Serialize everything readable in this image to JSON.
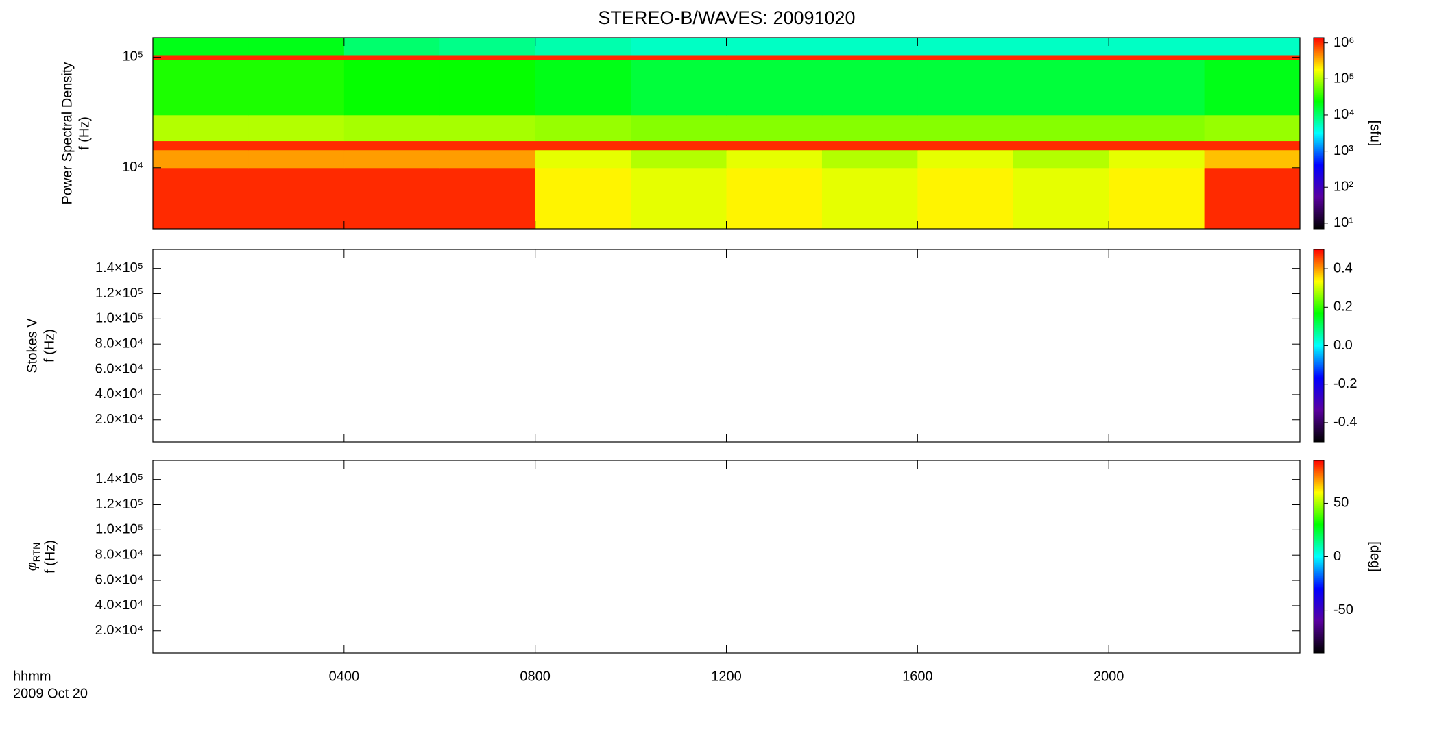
{
  "chart_data": [
    {
      "type": "heatmap",
      "title": "STEREO-B/WAVES: 20091020",
      "ylabel": [
        "Power Spectral Density",
        "f (Hz)"
      ],
      "xlim": [
        0,
        24
      ],
      "xticks": [
        4,
        8,
        12,
        16,
        20
      ],
      "ylim": [
        2800,
        150000
      ],
      "yscale": "log",
      "yticks": [
        {
          "value": 10000,
          "label": "10⁴"
        },
        {
          "value": 100000,
          "label": "10⁵"
        }
      ],
      "xbins": [
        0,
        2,
        4,
        6,
        8,
        10,
        12,
        14,
        16,
        18,
        20,
        22,
        24
      ],
      "ybins": [
        2800,
        10000,
        14500,
        17500,
        30000,
        95000,
        105000,
        150000
      ],
      "z": [
        [
          1000000,
          1000000,
          1000000,
          1000000,
          200000,
          150000,
          200000,
          150000,
          200000,
          150000,
          200000,
          1000000
        ],
        [
          400000,
          400000,
          400000,
          400000,
          150000,
          100000,
          150000,
          100000,
          150000,
          100000,
          150000,
          300000
        ],
        [
          1000000,
          1000000,
          1000000,
          1000000,
          1000000,
          1000000,
          1000000,
          1000000,
          1000000,
          1000000,
          1000000,
          1000000
        ],
        [
          100000,
          100000,
          90000,
          90000,
          80000,
          70000,
          70000,
          70000,
          70000,
          70000,
          70000,
          80000
        ],
        [
          30000,
          30000,
          25000,
          25000,
          20000,
          15000,
          15000,
          15000,
          15000,
          15000,
          15000,
          20000
        ],
        [
          1000000,
          1000000,
          1000000,
          1000000,
          1000000,
          1000000,
          1000000,
          1000000,
          1000000,
          1000000,
          1000000,
          1000000
        ],
        [
          20000,
          20000,
          10000,
          8000,
          6000,
          5000,
          5000,
          5000,
          5000,
          5000,
          5000,
          5000
        ]
      ],
      "zlim": [
        7,
        1400000
      ],
      "zscale": "log",
      "zlabel": "[sfu]",
      "zticks": [
        {
          "value": 10,
          "label": "10¹"
        },
        {
          "value": 100,
          "label": "10²"
        },
        {
          "value": 1000,
          "label": "10³"
        },
        {
          "value": 10000,
          "label": "10⁴"
        },
        {
          "value": 100000,
          "label": "10⁵"
        },
        {
          "value": 1000000,
          "label": "10⁶"
        }
      ],
      "colormap": [
        "#000000",
        "#5a00a0",
        "#0000ff",
        "#00ffff",
        "#00ff00",
        "#ffff00",
        "#ff0000"
      ]
    },
    {
      "type": "heatmap",
      "ylabel": [
        "Stokes V",
        "f (Hz)"
      ],
      "xlim": [
        0,
        24
      ],
      "xticks": [
        4,
        8,
        12,
        16,
        20
      ],
      "ylim": [
        2500,
        155000
      ],
      "yticks": [
        {
          "value": 20000,
          "label": "2.0×10⁴"
        },
        {
          "value": 40000,
          "label": "4.0×10⁴"
        },
        {
          "value": 60000,
          "label": "6.0×10⁴"
        },
        {
          "value": 80000,
          "label": "8.0×10⁴"
        },
        {
          "value": 100000,
          "label": "1.0×10⁵"
        },
        {
          "value": 120000,
          "label": "1.2×10⁵"
        },
        {
          "value": 140000,
          "label": "1.4×10⁵"
        }
      ],
      "zlim": [
        -0.5,
        0.5
      ],
      "zticks": [
        -0.4,
        -0.2,
        {
          "value": 0,
          "label": "0.0"
        },
        0.2,
        0.4
      ],
      "colormap": [
        "#000000",
        "#5a00a0",
        "#0000ff",
        "#00ffff",
        "#00ff00",
        "#ffff00",
        "#ff0000"
      ]
    },
    {
      "type": "heatmap",
      "ylabel_symbol": "φ",
      "ylabel_subscript": "RTN",
      "ylabel": [
        "f (Hz)"
      ],
      "xlabel": [
        "hhmm",
        "2009 Oct 20"
      ],
      "xlim": [
        0,
        24
      ],
      "xticks": [
        {
          "value": 4,
          "label": "0400"
        },
        {
          "value": 8,
          "label": "0800"
        },
        {
          "value": 12,
          "label": "1200"
        },
        {
          "value": 16,
          "label": "1600"
        },
        {
          "value": 20,
          "label": "2000"
        }
      ],
      "ylim": [
        2500,
        155000
      ],
      "yticks": [
        {
          "value": 20000,
          "label": "2.0×10⁴"
        },
        {
          "value": 40000,
          "label": "4.0×10⁴"
        },
        {
          "value": 60000,
          "label": "6.0×10⁴"
        },
        {
          "value": 80000,
          "label": "8.0×10⁴"
        },
        {
          "value": 100000,
          "label": "1.0×10⁵"
        },
        {
          "value": 120000,
          "label": "1.2×10⁵"
        },
        {
          "value": 140000,
          "label": "1.4×10⁵"
        }
      ],
      "zlim": [
        -90,
        90
      ],
      "zlabel": "[deg]",
      "zticks": [
        -50,
        0,
        50
      ],
      "colormap": [
        "#000000",
        "#5a00a0",
        "#0000ff",
        "#00ffff",
        "#00ff00",
        "#ffff00",
        "#ff0000"
      ]
    }
  ]
}
